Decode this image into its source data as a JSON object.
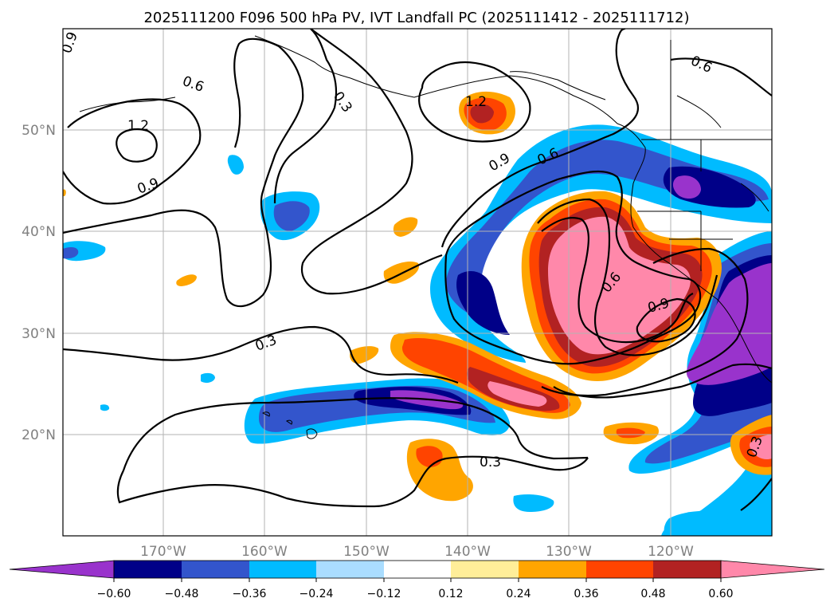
{
  "title": "2025111200 F096 500 hPa PV, IVT Landfall PC (2025111412 - 2025111712)",
  "map": {
    "lon_labels": [
      "170°W",
      "160°W",
      "150°W",
      "140°W",
      "130°W",
      "120°W"
    ],
    "lat_labels": [
      "50°N",
      "40°N",
      "30°N",
      "20°N"
    ],
    "contour_labels": [
      "0.9",
      "0.6",
      "0.3",
      "1.2",
      "1.2",
      "0.9",
      "0.9",
      "0.6",
      "0.6",
      "0.3",
      "0.6",
      "0.9",
      "0.3",
      "0.3"
    ]
  },
  "colorbar": {
    "ticks": [
      "−0.60",
      "−0.48",
      "−0.36",
      "−0.24",
      "−0.12",
      "0.12",
      "0.24",
      "0.36",
      "0.48",
      "0.60"
    ],
    "colors": {
      "lt_-0.60": "#9933cc",
      "-0.60_-0.48": "#000088",
      "-0.48_-0.36": "#3355cc",
      "-0.36_-0.24": "#00bbff",
      "-0.24_-0.12": "#aaddff",
      "-0.12_0.12": "#ffffff",
      "0.12_0.24": "#ffee99",
      "0.24_0.36": "#ffa500",
      "0.36_0.48": "#ff4400",
      "0.48_0.60": "#b22222",
      "gt_0.60": "#ff88aa"
    }
  }
}
